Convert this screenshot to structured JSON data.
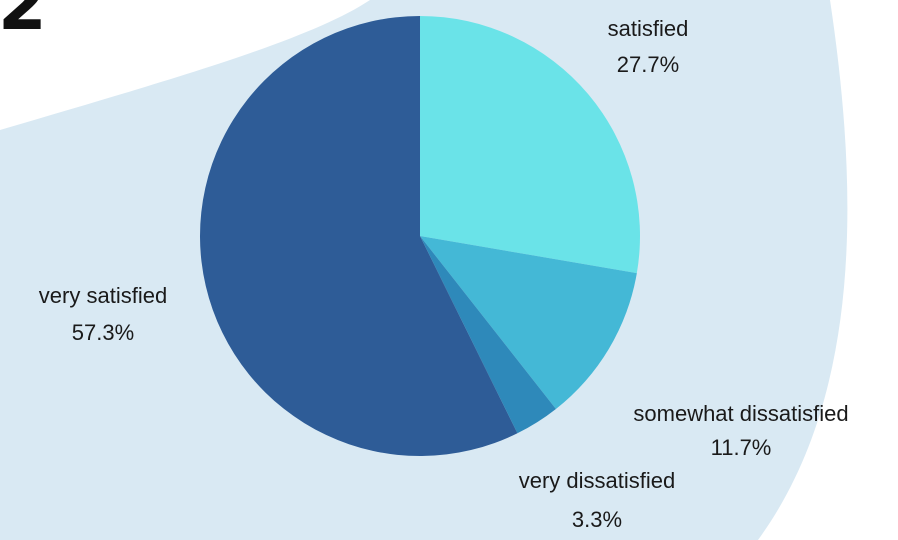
{
  "page": {
    "corner_text": "2",
    "background_color": "#ffffff",
    "panel_color": "#d9e9f3"
  },
  "chart_data": {
    "type": "pie",
    "slices": [
      {
        "label": "satisfied",
        "value": 27.7,
        "value_label": "27.7%",
        "color": "#6ae3e8"
      },
      {
        "label": "somewhat dissatisfied",
        "value": 11.7,
        "value_label": "11.7%",
        "color": "#44b8d6"
      },
      {
        "label": "very dissatisfied",
        "value": 3.3,
        "value_label": "3.3%",
        "color": "#2e89ba"
      },
      {
        "label": "very satisfied",
        "value": 57.3,
        "value_label": "57.3%",
        "color": "#2e5c97"
      }
    ],
    "start": "top",
    "direction": "clockwise",
    "labels": "outside"
  }
}
